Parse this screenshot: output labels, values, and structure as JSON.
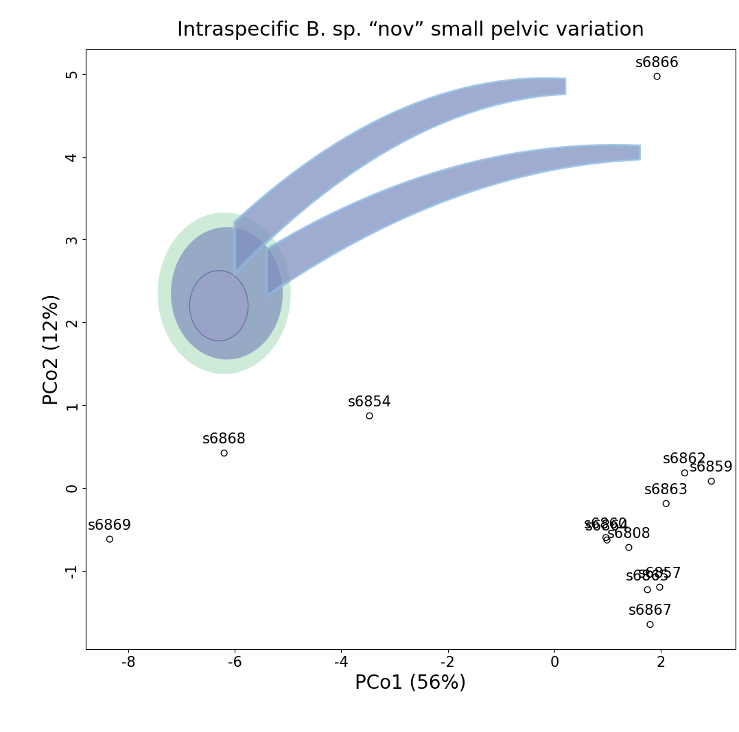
{
  "chart_data": {
    "type": "scatter",
    "title": "Intraspecific B. sp. “nov” small pelvic variation",
    "x_label": "PCo1 (56%)",
    "y_label": "PCo2 (12%)",
    "labels": [
      "s6866",
      "s6854",
      "s6868",
      "s6869",
      "s6862",
      "s6859",
      "s6863",
      "s6860",
      "s6864",
      "s6808",
      "s6857",
      "s6865",
      "s6867"
    ],
    "x": [
      1.93,
      -3.47,
      -6.2,
      -8.35,
      2.45,
      2.95,
      2.1,
      0.97,
      0.99,
      1.4,
      1.98,
      1.75,
      1.8
    ],
    "y": [
      4.97,
      0.87,
      0.42,
      -0.62,
      0.18,
      0.08,
      -0.19,
      -0.6,
      -0.63,
      -0.72,
      -1.2,
      -1.23,
      -1.65
    ],
    "xlim": [
      -8.8,
      3.4
    ],
    "ylim": [
      -1.95,
      5.3
    ],
    "xticks": [
      -8,
      -6,
      -4,
      -2,
      0,
      2
    ],
    "yticks": [
      -1,
      0,
      1,
      2,
      3,
      4,
      5
    ],
    "marker": "circle",
    "color": "#000000",
    "grid": false
  }
}
